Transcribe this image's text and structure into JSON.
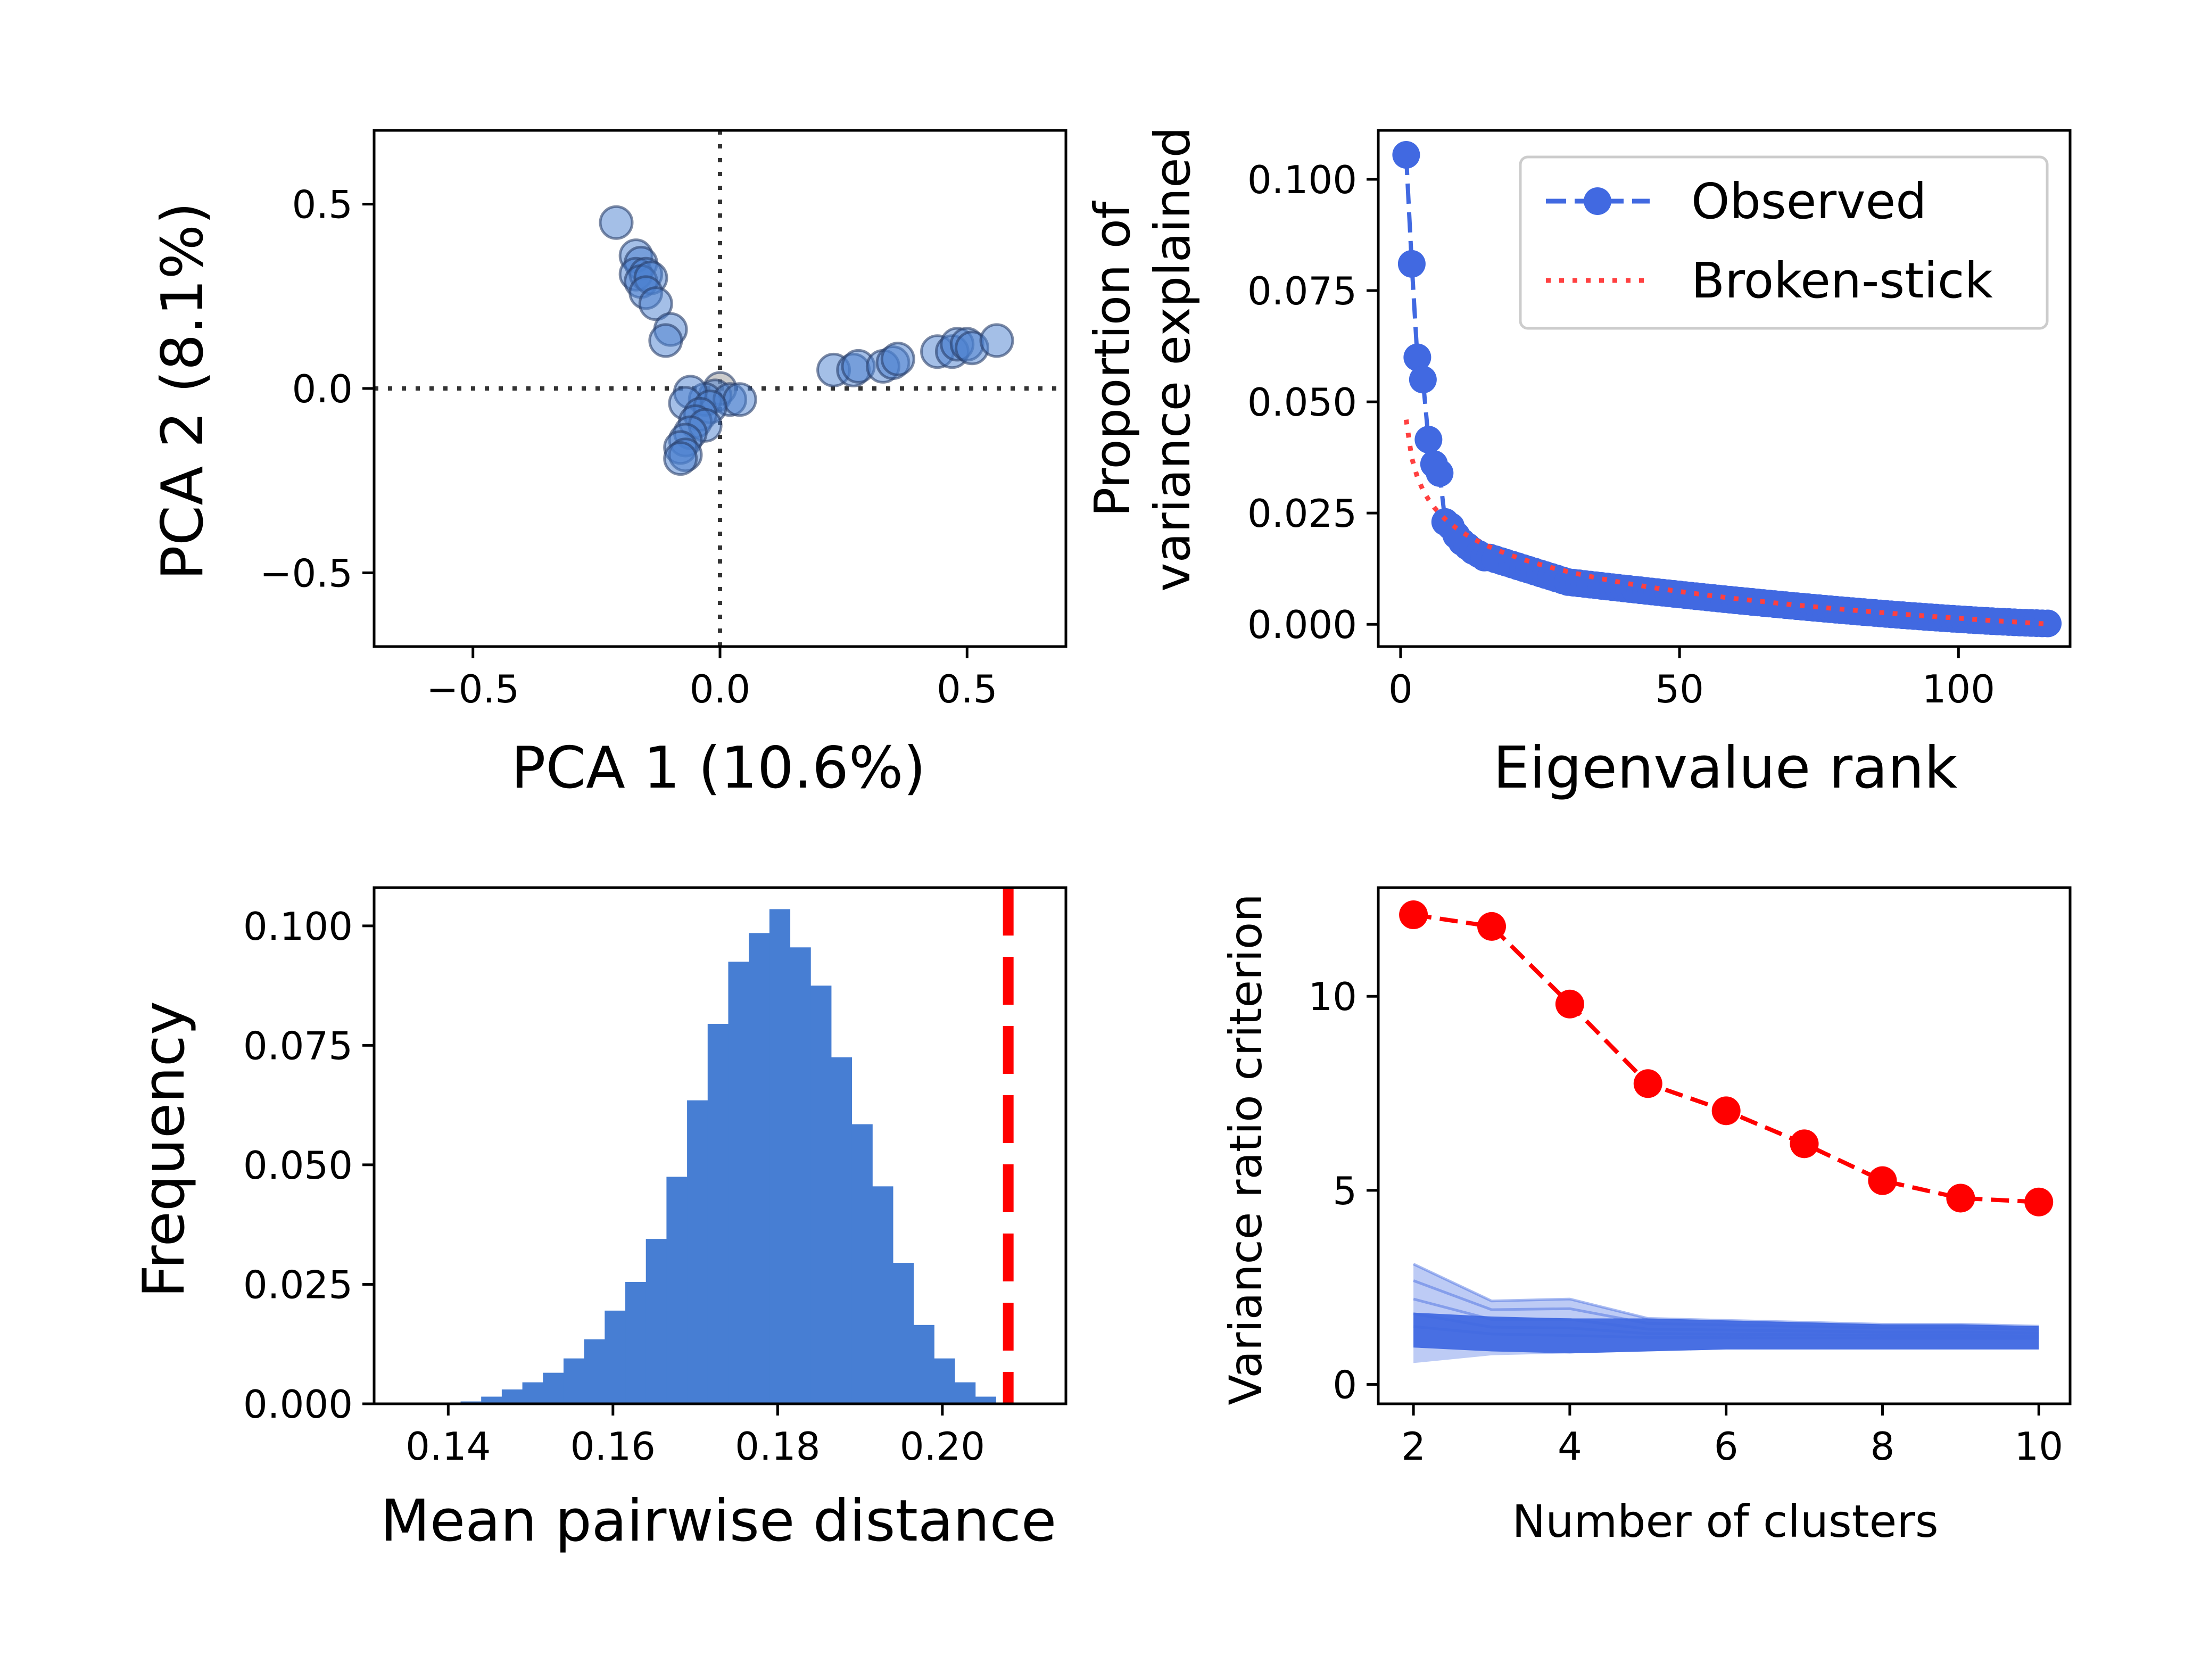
{
  "chart_data": [
    {
      "type": "scatter",
      "xlabel": "PCA 1 (10.6%)",
      "ylabel": "PCA 2 (8.1%)",
      "xlim": [
        -0.7,
        0.7
      ],
      "ylim": [
        -0.7,
        0.7
      ],
      "xticks": [
        "−0.5",
        "0.0",
        "0.5"
      ],
      "yticks": [
        "−0.5",
        "0.0",
        "0.5"
      ],
      "reference_lines": {
        "x": 0.0,
        "y": 0.0,
        "style": "dotted"
      },
      "point_color": "#4a7fd0",
      "highlight_color": "#9a9a9a",
      "points": [
        {
          "x": -0.21,
          "y": 0.45
        },
        {
          "x": -0.17,
          "y": 0.36
        },
        {
          "x": -0.16,
          "y": 0.34
        },
        {
          "x": -0.17,
          "y": 0.31
        },
        {
          "x": -0.15,
          "y": 0.31
        },
        {
          "x": -0.16,
          "y": 0.29
        },
        {
          "x": -0.14,
          "y": 0.3
        },
        {
          "x": -0.15,
          "y": 0.26
        },
        {
          "x": -0.13,
          "y": 0.23
        },
        {
          "x": -0.1,
          "y": 0.16
        },
        {
          "x": -0.11,
          "y": 0.13
        },
        {
          "x": 0.0,
          "y": 0.0,
          "highlight": true
        },
        {
          "x": -0.01,
          "y": -0.02
        },
        {
          "x": -0.03,
          "y": -0.03
        },
        {
          "x": -0.06,
          "y": -0.01
        },
        {
          "x": -0.07,
          "y": -0.04
        },
        {
          "x": 0.02,
          "y": -0.03
        },
        {
          "x": 0.04,
          "y": -0.03
        },
        {
          "x": -0.02,
          "y": -0.05
        },
        {
          "x": -0.04,
          "y": -0.07
        },
        {
          "x": -0.05,
          "y": -0.09
        },
        {
          "x": -0.03,
          "y": -0.1
        },
        {
          "x": -0.06,
          "y": -0.12
        },
        {
          "x": -0.07,
          "y": -0.14
        },
        {
          "x": -0.08,
          "y": -0.16
        },
        {
          "x": -0.07,
          "y": -0.18
        },
        {
          "x": -0.08,
          "y": -0.19
        },
        {
          "x": 0.23,
          "y": 0.05
        },
        {
          "x": 0.27,
          "y": 0.05
        },
        {
          "x": 0.28,
          "y": 0.06
        },
        {
          "x": 0.33,
          "y": 0.06
        },
        {
          "x": 0.35,
          "y": 0.07
        },
        {
          "x": 0.36,
          "y": 0.08
        },
        {
          "x": 0.44,
          "y": 0.1
        },
        {
          "x": 0.47,
          "y": 0.1
        },
        {
          "x": 0.48,
          "y": 0.12
        },
        {
          "x": 0.5,
          "y": 0.12
        },
        {
          "x": 0.51,
          "y": 0.11
        },
        {
          "x": 0.56,
          "y": 0.13
        }
      ]
    },
    {
      "type": "line",
      "xlabel": "Eigenvalue rank",
      "ylabel": [
        "Proportion of",
        "variance explained"
      ],
      "xlim": [
        -4,
        120
      ],
      "ylim": [
        -0.005,
        0.111
      ],
      "xticks": [
        "0",
        "50",
        "100"
      ],
      "yticks": [
        "0.000",
        "0.025",
        "0.050",
        "0.075",
        "0.100"
      ],
      "legend": {
        "placement": "top-right",
        "entries": [
          "Observed",
          "Broken-stick"
        ]
      },
      "series": [
        {
          "name": "Observed",
          "color": "#4169e1",
          "style": "dashed-markers",
          "head": [
            0.1055,
            0.081,
            0.06,
            0.055,
            0.0415,
            0.036,
            0.034,
            0.023,
            0.022,
            0.02,
            0.0185,
            0.0175,
            0.0165,
            0.0158,
            0.015
          ],
          "tail_model": {
            "from_rank": 16,
            "to_rank": 116,
            "start_value": 0.015,
            "mid_rank": 30,
            "mid_value": 0.0095,
            "end_value": 0.0002
          }
        },
        {
          "name": "Broken-stick",
          "color": "#ff4040",
          "style": "dotted",
          "n": 116
        }
      ]
    },
    {
      "type": "bar",
      "xlabel": "Mean pairwise distance",
      "ylabel": "Frequency",
      "xlim": [
        0.131,
        0.215
      ],
      "ylim": [
        0,
        0.108
      ],
      "xticks": [
        "0.14",
        "0.16",
        "0.18",
        "0.20"
      ],
      "yticks": [
        "0.000",
        "0.025",
        "0.050",
        "0.075",
        "0.100"
      ],
      "bar_color": "#477ed3",
      "bin_start": 0.1415,
      "bin_width": 0.0025,
      "values": [
        0.0005,
        0.0015,
        0.003,
        0.0045,
        0.0065,
        0.0095,
        0.0135,
        0.0195,
        0.0255,
        0.0345,
        0.0475,
        0.0635,
        0.0795,
        0.0925,
        0.0985,
        0.1035,
        0.0955,
        0.0875,
        0.0725,
        0.0585,
        0.0455,
        0.0295,
        0.0165,
        0.0095,
        0.0045,
        0.0015
      ],
      "reference_line": {
        "x": 0.208,
        "color": "#ff0000",
        "style": "dashed"
      }
    },
    {
      "type": "line",
      "xlabel": "Number of clusters",
      "ylabel": "Variance ratio criterion",
      "xlim": [
        1.55,
        10.4
      ],
      "ylim": [
        -0.5,
        12.8
      ],
      "xticks": [
        "2",
        "4",
        "6",
        "8",
        "10"
      ],
      "yticks": [
        "0",
        "5",
        "10"
      ],
      "x": [
        2,
        3,
        4,
        5,
        6,
        7,
        8,
        9,
        10
      ],
      "series": [
        {
          "name": "",
          "color": "#ff0000",
          "style": "dashed-markers",
          "values": [
            12.1,
            11.8,
            9.8,
            7.75,
            7.05,
            6.2,
            5.25,
            4.8,
            4.7
          ]
        }
      ],
      "null_band": {
        "color": "#4169e1",
        "lower": [
          0.55,
          0.75,
          0.8,
          0.85,
          0.9,
          0.9,
          0.9,
          0.9,
          0.9
        ],
        "upper": [
          3.1,
          2.15,
          2.2,
          1.7,
          1.65,
          1.6,
          1.55,
          1.55,
          1.5
        ],
        "typical": [
          1.3,
          1.2,
          1.15,
          1.15,
          1.15,
          1.15,
          1.15,
          1.15,
          1.15
        ]
      }
    }
  ]
}
